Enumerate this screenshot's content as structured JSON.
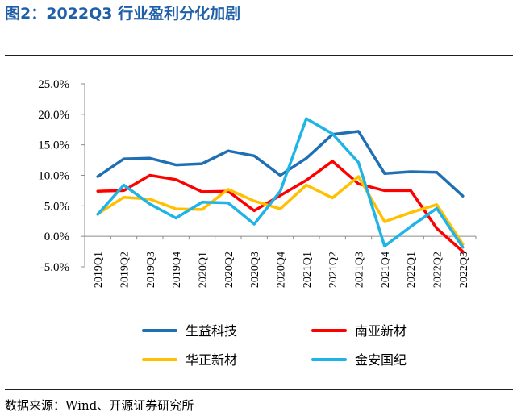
{
  "figure_title": "图2：2022Q3 行业盈利分化加剧",
  "source_note": "数据来源：Wind、开源证券研究所",
  "chart_data": {
    "type": "line",
    "title": "",
    "xlabel": "",
    "ylabel": "",
    "categories": [
      "2019Q1",
      "2019Q2",
      "2019Q3",
      "2019Q4",
      "2020Q1",
      "2020Q2",
      "2020Q3",
      "2020Q4",
      "2021Q1",
      "2021Q2",
      "2021Q3",
      "2021Q4",
      "2022Q1",
      "2022Q2",
      "2022Q3"
    ],
    "y_ticks": [
      "25.0%",
      "20.0%",
      "15.0%",
      "10.0%",
      "5.0%",
      "0.0%",
      "-5.0%"
    ],
    "ylim": [
      -5,
      25
    ],
    "grid": false,
    "legend_position": "bottom",
    "series": [
      {
        "name": "生益科技",
        "color": "#1f6fb4",
        "values": [
          9.8,
          12.7,
          12.8,
          11.7,
          11.9,
          14.0,
          13.2,
          10.0,
          12.8,
          16.7,
          17.2,
          10.3,
          10.6,
          10.5,
          6.6
        ]
      },
      {
        "name": "南亚新材",
        "color": "#ff0000",
        "values": [
          7.4,
          7.5,
          10.0,
          9.3,
          7.3,
          7.4,
          4.2,
          6.7,
          9.2,
          12.3,
          8.6,
          7.5,
          7.5,
          1.3,
          -2.5
        ]
      },
      {
        "name": "华正新材",
        "color": "#ffc000",
        "values": [
          3.7,
          6.4,
          6.1,
          4.5,
          4.4,
          7.7,
          5.8,
          4.5,
          8.4,
          6.3,
          9.8,
          2.4,
          3.9,
          5.2,
          -1.3
        ]
      },
      {
        "name": "金安国纪",
        "color": "#1fb4e6",
        "values": [
          3.6,
          8.4,
          5.3,
          3.0,
          5.6,
          5.5,
          2.0,
          7.4,
          19.3,
          16.8,
          12.1,
          -1.6,
          1.6,
          4.6,
          -1.8
        ]
      }
    ]
  }
}
